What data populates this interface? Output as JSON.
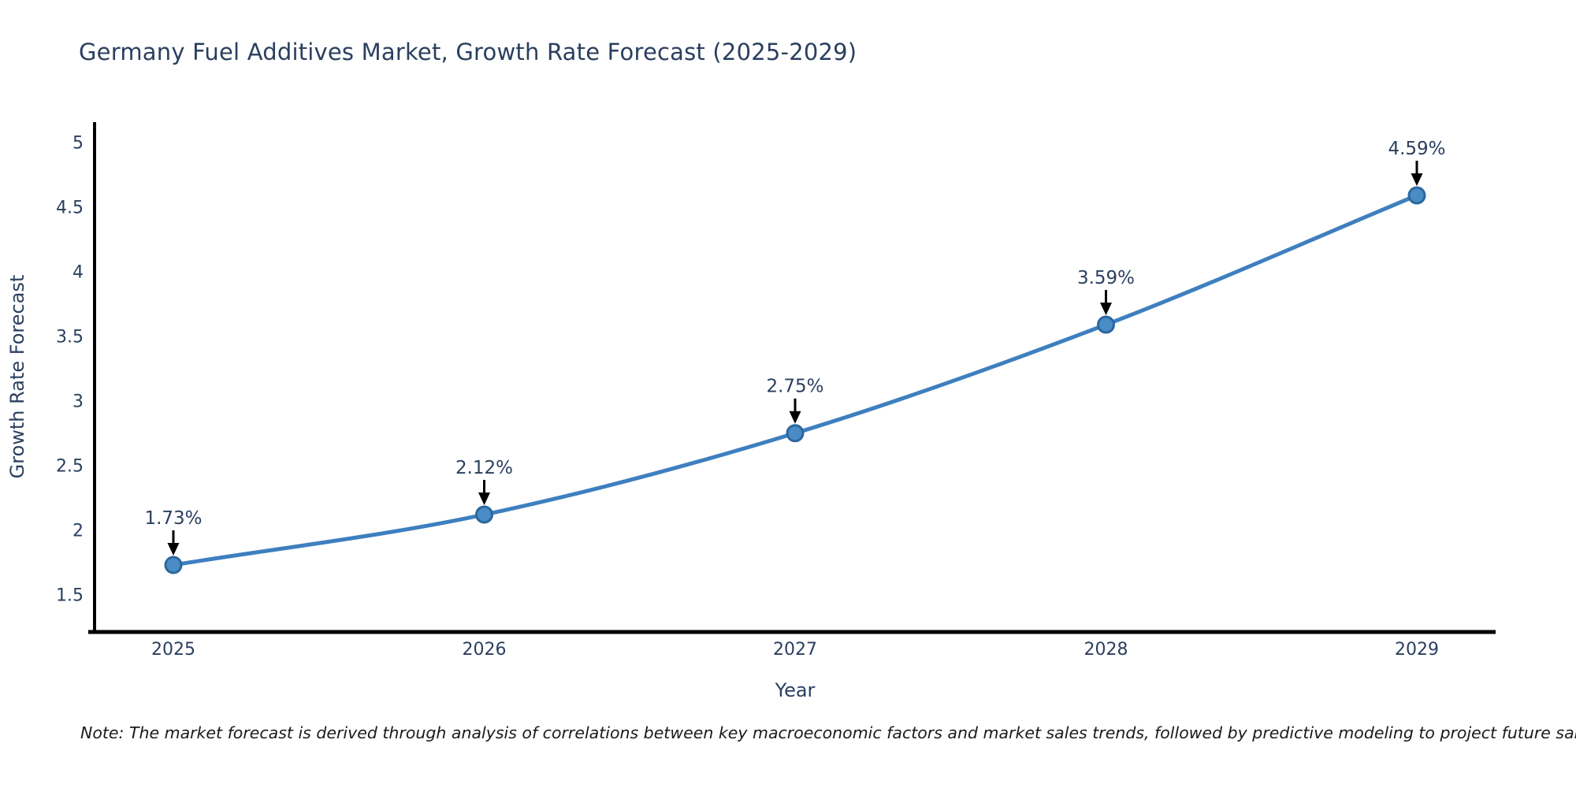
{
  "title": "Germany Fuel Additives Market, Growth Rate Forecast (2025-2029)",
  "note": "Note: The market forecast is derived through analysis of correlations between key macroeconomic factors and market sales trends, followed by predictive modeling to project future sales",
  "chart_data": {
    "type": "line",
    "title": "Germany Fuel Additives Market, Growth Rate Forecast (2025-2029)",
    "series": [
      {
        "name": "Growth Rate Forecast",
        "x": [
          2025,
          2026,
          2027,
          2028,
          2029
        ],
        "values": [
          1.73,
          2.12,
          2.75,
          3.59,
          4.59
        ],
        "point_labels": [
          "1.73%",
          "2.12%",
          "2.75%",
          "3.59%",
          "4.59%"
        ]
      }
    ],
    "xlabel": "Year",
    "ylabel": "Growth Rate Forecast",
    "xticklabels": [
      "2025",
      "2026",
      "2027",
      "2028",
      "2029"
    ],
    "yticks": [
      1.5,
      2,
      2.5,
      3,
      3.5,
      4,
      4.5,
      5
    ],
    "ylim": [
      1.21,
      5.16
    ],
    "xlim": [
      2024.75,
      2029.25
    ],
    "grid": false,
    "legend": "none",
    "marker_symbol": "circle",
    "annotation_style": "value labels with downward arrows above each point",
    "colors": {
      "line": "#3e7fbf",
      "marker_fill": "#4a8cc6",
      "marker_edge": "#2b679f",
      "axis_line": "#000000",
      "arrow": "#000000",
      "text": "#2a3f5f",
      "note_text": "#1a1a1a",
      "background": "#ffffff"
    }
  }
}
